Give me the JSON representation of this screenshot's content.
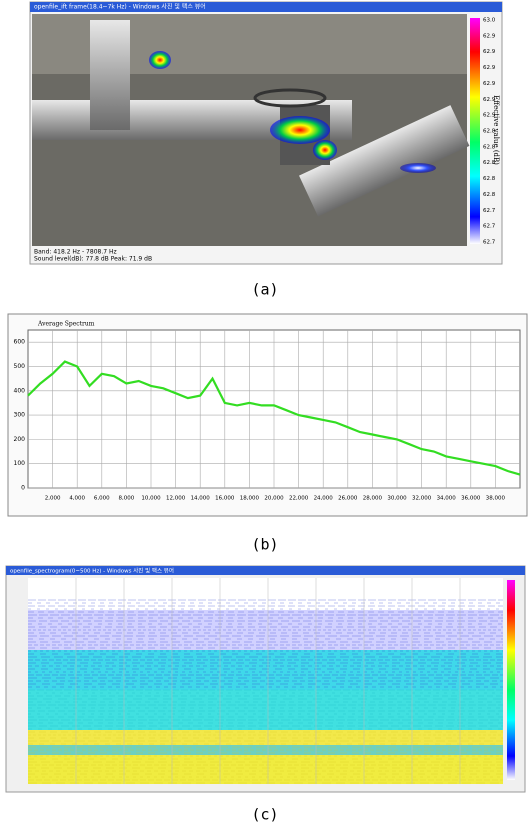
{
  "panel_a": {
    "window_title": "openfile_ift frame(18.4~7k Hz) - Windows 사진 및 팩스 뷰어",
    "colorbar_ticks": [
      "63.0",
      "62.9",
      "62.9",
      "62.9",
      "62.9",
      "62.9",
      "62.9",
      "62.8",
      "62.8",
      "62.8",
      "62.8",
      "62.8",
      "62.7",
      "62.7",
      "62.7"
    ],
    "colorbar_label": "Effective value (dB)",
    "status": [
      "Band: 418.2 Hz - 7808.7 Hz",
      "Sound level(dB): 77.8 dB   Peak: 71.9 dB"
    ],
    "caption": "(a)"
  },
  "panel_b": {
    "chart_data": {
      "type": "line",
      "title": "Average Spectrum",
      "x": [
        0,
        1000,
        2000,
        3000,
        4000,
        5000,
        6000,
        7000,
        8000,
        9000,
        10000,
        11000,
        12000,
        13000,
        14000,
        15000,
        16000,
        17000,
        18000,
        19000,
        20000,
        21000,
        22000,
        23000,
        24000,
        25000,
        26000,
        27000,
        28000,
        29000,
        30000,
        31000,
        32000,
        33000,
        34000,
        35000,
        36000,
        37000,
        38000,
        39000,
        40000
      ],
      "series": [
        {
          "color": "#33dd22",
          "values": [
            380,
            430,
            470,
            520,
            500,
            420,
            470,
            460,
            430,
            440,
            420,
            410,
            390,
            370,
            380,
            450,
            350,
            340,
            350,
            340,
            340,
            320,
            300,
            290,
            280,
            270,
            250,
            230,
            220,
            210,
            200,
            180,
            160,
            150,
            130,
            120,
            110,
            100,
            90,
            70,
            55
          ]
        }
      ],
      "xlim": [
        0,
        40000
      ],
      "ylim": [
        0,
        650
      ],
      "xticks": [
        {
          "value": 2000,
          "label": "2,000"
        },
        {
          "value": 4000,
          "label": "4,000"
        },
        {
          "value": 6000,
          "label": "6,000"
        },
        {
          "value": 8000,
          "label": "8,000"
        },
        {
          "value": 10000,
          "label": "10,000"
        },
        {
          "value": 12000,
          "label": "12,000"
        },
        {
          "value": 14000,
          "label": "14,000"
        },
        {
          "value": 16000,
          "label": "16,000"
        },
        {
          "value": 18000,
          "label": "18,000"
        },
        {
          "value": 20000,
          "label": "20,000"
        },
        {
          "value": 22000,
          "label": "22,000"
        },
        {
          "value": 24000,
          "label": "24,000"
        },
        {
          "value": 26000,
          "label": "26,000"
        },
        {
          "value": 28000,
          "label": "28,000"
        },
        {
          "value": 30000,
          "label": "30,000"
        },
        {
          "value": 32000,
          "label": "32,000"
        },
        {
          "value": 34000,
          "label": "34,000"
        },
        {
          "value": 36000,
          "label": "36,000"
        },
        {
          "value": 38000,
          "label": "38,000"
        }
      ],
      "yticks": [
        0,
        100,
        200,
        300,
        400,
        500,
        600
      ],
      "grid": true
    },
    "caption": "(b)"
  },
  "panel_c": {
    "window_title": "openfile_spectrogram(0~500 Hz) - Windows 사진 및 팩스 뷰어",
    "caption": "(c)"
  }
}
